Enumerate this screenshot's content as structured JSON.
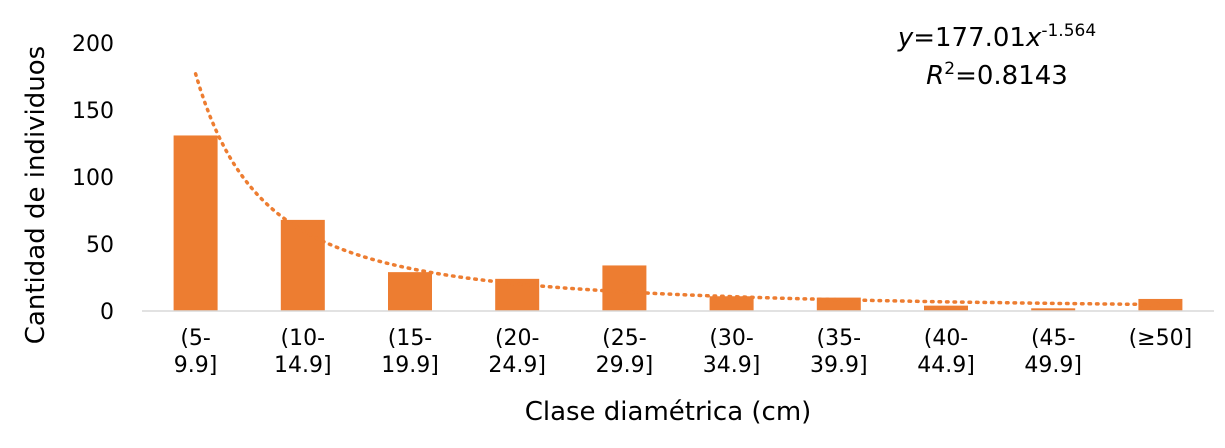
{
  "chart_data": {
    "type": "bar",
    "categories": [
      [
        "(5-",
        "9.9]"
      ],
      [
        "(10-",
        "14.9]"
      ],
      [
        "(15-",
        "19.9]"
      ],
      [
        "(20-",
        "24.9]"
      ],
      [
        "(25-",
        "29.9]"
      ],
      [
        "(30-",
        "34.9]"
      ],
      [
        "(35-",
        "39.9]"
      ],
      [
        "(40-",
        "44.9]"
      ],
      [
        "(45-",
        "49.9]"
      ],
      [
        "(≥50]"
      ]
    ],
    "values": [
      131,
      68,
      29,
      24,
      34,
      11,
      10,
      4,
      2,
      9
    ],
    "xlabel": "Clase diamétrica (cm)",
    "ylabel": "Cantidad de individuos",
    "ylim": [
      0,
      200
    ],
    "yticks": [
      0,
      50,
      100,
      150,
      200
    ],
    "grid": false,
    "bar_color": "#ED7D31",
    "trendline": {
      "type": "power",
      "a": 177.01,
      "b": -1.564,
      "color": "#ED7D31",
      "style": "dotted",
      "equation": {
        "y": "y",
        "eq": "=177.01",
        "x": "x",
        "exp": "-1.564"
      },
      "r2": {
        "r": "R",
        "sup": "2",
        "value": "=0.8143"
      }
    }
  }
}
